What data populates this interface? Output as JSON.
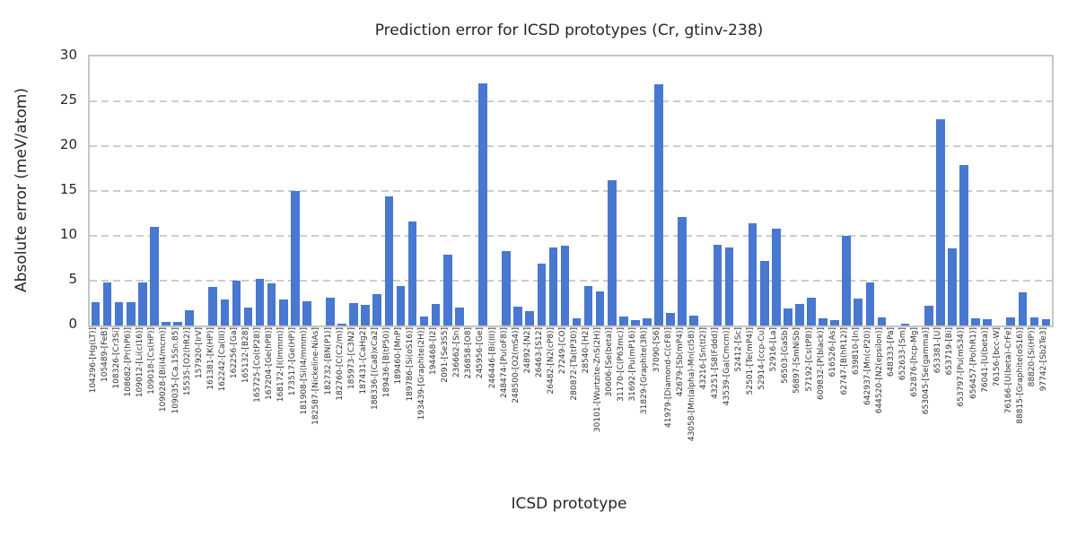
{
  "colors": {
    "bar": "#4878d0",
    "grid": "#cccccc",
    "frame": "#c6c6c6",
    "text": "#262626",
    "tick_text": "#333333"
  },
  "chart_data": {
    "type": "bar",
    "title": "Prediction error for ICSD prototypes (Cr, gtinv-238)",
    "xlabel": "ICSD prototype",
    "ylabel": "Absolute error (meV/atom)",
    "ylim": [
      0,
      30
    ],
    "yticks": [
      0,
      5,
      10,
      15,
      20,
      25,
      30
    ],
    "grid": "horizontal-dashed",
    "legend": "none",
    "categories": [
      "104296-[Hg(LT)]",
      "105489-[FeB]",
      "108326-[Cr3Si]",
      "108682-[Pr(hP6)]",
      "109012-[Li(cI16)]",
      "109018-[Cs(HP)]",
      "109028-[Bi(I4/mcm)]",
      "109035-[Ca.15Sn.85]",
      "15535-[O2(hR2)]",
      "157920-[IrV]",
      "161381-[K(HP)]",
      "162242-[Ca(III)]",
      "162256-[Ga]",
      "165132-[B28]",
      "165725-[Co(tP28)]",
      "167204-[Ge(hP8)]",
      "168172-[I(Immm)]",
      "173517-[Ge(HP)]",
      "181908-[Si(I4/mmm)]",
      "182587-[Nickeline-NiAs]",
      "182732-[BN(P1)]",
      "182760-[C(C2/m)]",
      "185973-[C3N2]",
      "187431-[CaHg2]",
      "188336-[(Ca8)xCa2]",
      "189436-[B(tP50)]",
      "189460-[MnP]",
      "189786-[Si(oS16)]",
      "193439-[Graphite(2H)]",
      "194468-[I2]",
      "2091-[Se3S5]",
      "236662-[Sn]",
      "236858-[O8]",
      "245956-[Ge]",
      "246446-[Bi(III)]",
      "248474-[Pu(oF8)]",
      "248500-[O2(mS4)]",
      "24892-[N2]",
      "26463-[S12]",
      "26482-[N2(cP8)]",
      "27249-[CO]",
      "280872-[Ta(tP30)]",
      "28540-[H2]",
      "30101-[Wurtzite-ZnS(2H)]",
      "30606-[Se(beta)]",
      "31170-[C(P63mc)]",
      "31692-[Pu(mP16)]",
      "31829-[Graphite(3R)]",
      "37090-[S6]",
      "41979-[Diamond-C(cF8)]",
      "42679-[Sb(mP4)]",
      "43058-[Mn(alpha)-Mn(cI58)]",
      "43216-[Sn(tI2)]",
      "43251-[S8(Fddd)]",
      "43539-[Ga(Cmcm)]",
      "52412-[Sc]",
      "52501-[Te(mP4)]",
      "52914-[ccp-Cu]",
      "52916-[La]",
      "56503-[GaSb]",
      "56897-[SmNiSb]",
      "57192-[Cs(tP8)]",
      "609832-[P(black)]",
      "616526-[As]",
      "62747-[B(hR12)]",
      "639810-[In]",
      "642937-[Mn(cP20)]",
      "644520-[N2(epsilon)]",
      "648333-[Pa]",
      "652633-[Sm]",
      "652876-[hcp-Mg]",
      "653045-[Se(gamma)]",
      "653381-[U]",
      "653719-[Bi]",
      "653797-[Pu(mS34)]",
      "656457-[Po(hR1)]",
      "76041-[U(beta)]",
      "76156-[bcc-W]",
      "76166-[U(beta)-CrFe]",
      "88815-[Graphite(oS16)]",
      "88820-[Si(HP)]",
      "97742-[Sb2Te3]"
    ],
    "values": [
      2.6,
      4.8,
      2.6,
      2.6,
      4.8,
      11.0,
      0.4,
      0.4,
      1.7,
      0,
      4.3,
      2.9,
      5.0,
      2.0,
      5.2,
      4.7,
      2.9,
      15.0,
      2.7,
      0,
      3.1,
      0.2,
      2.5,
      2.3,
      3.5,
      14.4,
      4.4,
      11.6,
      1.0,
      2.4,
      7.9,
      2.0,
      0,
      27.0,
      0,
      8.3,
      2.1,
      1.6,
      6.9,
      8.7,
      8.9,
      0.8,
      4.4,
      3.8,
      16.2,
      1.0,
      0.6,
      0.8,
      26.9,
      1.4,
      12.1,
      1.1,
      0,
      9.0,
      8.7,
      0,
      11.4,
      7.2,
      10.8,
      1.9,
      2.4,
      3.1,
      0.8,
      0.6,
      10.0,
      3.0,
      4.8,
      0.9,
      0,
      0.2,
      0,
      2.2,
      23.0,
      8.6,
      17.9,
      0.8,
      0.7,
      0,
      0.9,
      3.7,
      0.9,
      0.7
    ]
  }
}
